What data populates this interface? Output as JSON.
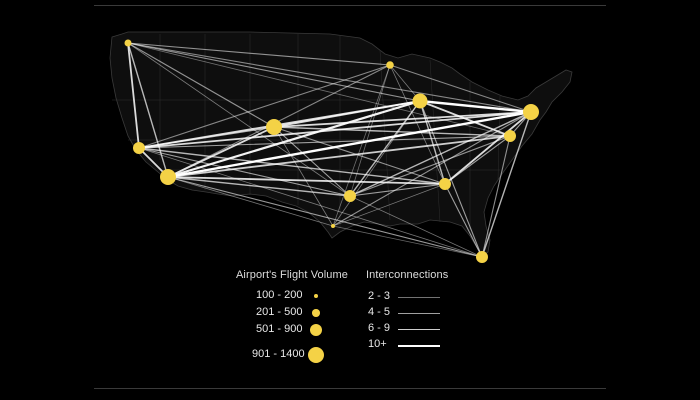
{
  "map": {
    "land_color": "#0e0e0e",
    "border_color": "#2e2e2e",
    "node_color": "#f4d246",
    "airports": [
      {
        "id": "seattle",
        "r": 3.5
      },
      {
        "id": "minneapolis",
        "r": 3.8
      },
      {
        "id": "chicago",
        "r": 7.5
      },
      {
        "id": "new-york",
        "r": 8
      },
      {
        "id": "philadelphia",
        "r": 6
      },
      {
        "id": "denver",
        "r": 8
      },
      {
        "id": "san-francisco",
        "r": 6
      },
      {
        "id": "los-angeles",
        "r": 8
      },
      {
        "id": "dallas",
        "r": 6
      },
      {
        "id": "atlanta",
        "r": 6
      },
      {
        "id": "houston",
        "r": 2
      },
      {
        "id": "miami",
        "r": 6
      }
    ],
    "routes": [
      {
        "from": "seattle",
        "to": "minneapolis",
        "w": 1.1,
        "o": 0.55
      },
      {
        "from": "seattle",
        "to": "new-york",
        "w": 1.1,
        "o": 0.5
      },
      {
        "from": "seattle",
        "to": "chicago",
        "w": 1.1,
        "o": 0.55
      },
      {
        "from": "seattle",
        "to": "san-francisco",
        "w": 1.8,
        "o": 0.85
      },
      {
        "from": "seattle",
        "to": "los-angeles",
        "w": 1.4,
        "o": 0.7
      },
      {
        "from": "seattle",
        "to": "denver",
        "w": 1.1,
        "o": 0.55
      },
      {
        "from": "seattle",
        "to": "dallas",
        "w": 0.8,
        "o": 0.45
      },
      {
        "from": "seattle",
        "to": "philadelphia",
        "w": 0.8,
        "o": 0.4
      },
      {
        "from": "minneapolis",
        "to": "san-francisco",
        "w": 1.1,
        "o": 0.5
      },
      {
        "from": "minneapolis",
        "to": "los-angeles",
        "w": 1.1,
        "o": 0.5
      },
      {
        "from": "minneapolis",
        "to": "new-york",
        "w": 1.1,
        "o": 0.5
      },
      {
        "from": "minneapolis",
        "to": "chicago",
        "w": 0.8,
        "o": 0.45
      },
      {
        "from": "minneapolis",
        "to": "atlanta",
        "w": 0.8,
        "o": 0.45
      },
      {
        "from": "minneapolis",
        "to": "houston",
        "w": 0.8,
        "o": 0.4
      },
      {
        "from": "minneapolis",
        "to": "dallas",
        "w": 0.8,
        "o": 0.4
      },
      {
        "from": "chicago",
        "to": "san-francisco",
        "w": 1.8,
        "o": 0.85
      },
      {
        "from": "chicago",
        "to": "los-angeles",
        "w": 2.2,
        "o": 0.95
      },
      {
        "from": "chicago",
        "to": "new-york",
        "w": 2.4,
        "o": 1.0
      },
      {
        "from": "chicago",
        "to": "philadelphia",
        "w": 1.8,
        "o": 0.85
      },
      {
        "from": "chicago",
        "to": "denver",
        "w": 1.8,
        "o": 0.85
      },
      {
        "from": "chicago",
        "to": "dallas",
        "w": 1.4,
        "o": 0.7
      },
      {
        "from": "chicago",
        "to": "atlanta",
        "w": 1.4,
        "o": 0.7
      },
      {
        "from": "chicago",
        "to": "miami",
        "w": 1.1,
        "o": 0.6
      },
      {
        "from": "chicago",
        "to": "houston",
        "w": 0.8,
        "o": 0.45
      },
      {
        "from": "new-york",
        "to": "san-francisco",
        "w": 1.8,
        "o": 0.85
      },
      {
        "from": "new-york",
        "to": "los-angeles",
        "w": 2.4,
        "o": 1.0
      },
      {
        "from": "new-york",
        "to": "denver",
        "w": 1.8,
        "o": 0.85
      },
      {
        "from": "new-york",
        "to": "dallas",
        "w": 1.4,
        "o": 0.7
      },
      {
        "from": "new-york",
        "to": "atlanta",
        "w": 1.8,
        "o": 0.85
      },
      {
        "from": "new-york",
        "to": "miami",
        "w": 1.4,
        "o": 0.7
      },
      {
        "from": "new-york",
        "to": "houston",
        "w": 1.1,
        "o": 0.55
      },
      {
        "from": "new-york",
        "to": "philadelphia",
        "w": 1.1,
        "o": 0.6
      },
      {
        "from": "philadelphia",
        "to": "los-angeles",
        "w": 1.8,
        "o": 0.8
      },
      {
        "from": "philadelphia",
        "to": "san-francisco",
        "w": 1.1,
        "o": 0.6
      },
      {
        "from": "philadelphia",
        "to": "denver",
        "w": 1.4,
        "o": 0.7
      },
      {
        "from": "philadelphia",
        "to": "atlanta",
        "w": 1.1,
        "o": 0.6
      },
      {
        "from": "philadelphia",
        "to": "miami",
        "w": 1.1,
        "o": 0.55
      },
      {
        "from": "philadelphia",
        "to": "dallas",
        "w": 1.1,
        "o": 0.55
      },
      {
        "from": "denver",
        "to": "san-francisco",
        "w": 1.4,
        "o": 0.7
      },
      {
        "from": "denver",
        "to": "los-angeles",
        "w": 1.8,
        "o": 0.85
      },
      {
        "from": "denver",
        "to": "dallas",
        "w": 1.1,
        "o": 0.6
      },
      {
        "from": "denver",
        "to": "atlanta",
        "w": 1.1,
        "o": 0.55
      },
      {
        "from": "denver",
        "to": "houston",
        "w": 0.8,
        "o": 0.45
      },
      {
        "from": "san-francisco",
        "to": "los-angeles",
        "w": 1.8,
        "o": 0.85
      },
      {
        "from": "san-francisco",
        "to": "atlanta",
        "w": 1.4,
        "o": 0.7
      },
      {
        "from": "san-francisco",
        "to": "dallas",
        "w": 1.1,
        "o": 0.6
      },
      {
        "from": "san-francisco",
        "to": "miami",
        "w": 0.8,
        "o": 0.45
      },
      {
        "from": "los-angeles",
        "to": "atlanta",
        "w": 1.8,
        "o": 0.85
      },
      {
        "from": "los-angeles",
        "to": "dallas",
        "w": 1.4,
        "o": 0.7
      },
      {
        "from": "los-angeles",
        "to": "miami",
        "w": 1.1,
        "o": 0.6
      },
      {
        "from": "los-angeles",
        "to": "houston",
        "w": 0.8,
        "o": 0.45
      },
      {
        "from": "dallas",
        "to": "atlanta",
        "w": 1.1,
        "o": 0.6
      },
      {
        "from": "dallas",
        "to": "miami",
        "w": 0.8,
        "o": 0.45
      },
      {
        "from": "atlanta",
        "to": "miami",
        "w": 1.1,
        "o": 0.6
      },
      {
        "from": "houston",
        "to": "atlanta",
        "w": 0.8,
        "o": 0.45
      },
      {
        "from": "miami",
        "to": "houston",
        "w": 0.8,
        "o": 0.4
      }
    ]
  },
  "legend": {
    "volume": {
      "title": "Airport's Flight Volume",
      "items": [
        {
          "label": "100 - 200",
          "r": 2
        },
        {
          "label": "201 - 500",
          "r": 3.8
        },
        {
          "label": "501 - 900",
          "r": 6
        },
        {
          "label": "901 - 1400",
          "r": 8
        }
      ]
    },
    "connections": {
      "title": "Interconnections",
      "items": [
        {
          "label": "2 - 3",
          "w": 0.8
        },
        {
          "label": "4 - 5",
          "w": 1.1
        },
        {
          "label": "6 - 9",
          "w": 1.5
        },
        {
          "label": "10+",
          "w": 2
        }
      ]
    }
  }
}
